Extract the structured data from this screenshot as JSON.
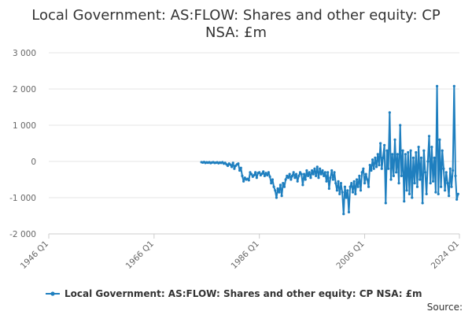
{
  "chart_data": {
    "type": "line",
    "title_lines": [
      "Local Government: AS:FLOW: Shares and other equity: CP",
      "NSA: £m"
    ],
    "source_label": "Source:",
    "y_ticks": [
      "3 000",
      "2 000",
      "1 000",
      "0",
      "-1 000",
      "-2 000"
    ],
    "y_tick_values": [
      3000,
      2000,
      1000,
      0,
      -1000,
      -2000
    ],
    "ylim": [
      -2000,
      3000
    ],
    "x_ticks": [
      "1946 Q1",
      "1966 Q1",
      "1986 Q1",
      "2006 Q1",
      "2024 Q1"
    ],
    "x_tick_values": [
      1946.0,
      1966.0,
      1986.0,
      2006.0,
      2024.0
    ],
    "xlim": [
      1946.0,
      2024.0
    ],
    "grid": "horizontal",
    "legend_position": "bottom",
    "colors": {
      "series": "#1f7fbf",
      "grid": "#e6e6e6",
      "axis": "#cccccc"
    },
    "series": [
      {
        "name": "Local Government: AS:FLOW: Shares and other equity: CP NSA: £m",
        "points": [
          [
            1975.0,
            -20
          ],
          [
            1975.25,
            -30
          ],
          [
            1975.5,
            -15
          ],
          [
            1975.75,
            -40
          ],
          [
            1976.0,
            -25
          ],
          [
            1976.25,
            -35
          ],
          [
            1976.5,
            -20
          ],
          [
            1976.75,
            -45
          ],
          [
            1977.0,
            -30
          ],
          [
            1977.25,
            -20
          ],
          [
            1977.5,
            -40
          ],
          [
            1977.75,
            -35
          ],
          [
            1978.0,
            -25
          ],
          [
            1978.25,
            -50
          ],
          [
            1978.5,
            -30
          ],
          [
            1978.75,
            -40
          ],
          [
            1979.0,
            -20
          ],
          [
            1979.25,
            -60
          ],
          [
            1979.5,
            -40
          ],
          [
            1979.75,
            -80
          ],
          [
            1980.0,
            -120
          ],
          [
            1980.25,
            -60
          ],
          [
            1980.5,
            -90
          ],
          [
            1980.75,
            -150
          ],
          [
            1981.0,
            -40
          ],
          [
            1981.25,
            -200
          ],
          [
            1981.5,
            -120
          ],
          [
            1981.75,
            -80
          ],
          [
            1982.0,
            -60
          ],
          [
            1982.25,
            -250
          ],
          [
            1982.5,
            -180
          ],
          [
            1982.75,
            -400
          ],
          [
            1983.0,
            -550
          ],
          [
            1983.25,
            -450
          ],
          [
            1983.5,
            -500
          ],
          [
            1983.75,
            -480
          ],
          [
            1984.0,
            -520
          ],
          [
            1984.25,
            -300
          ],
          [
            1984.5,
            -350
          ],
          [
            1984.75,
            -420
          ],
          [
            1985.0,
            -380
          ],
          [
            1985.25,
            -300
          ],
          [
            1985.5,
            -450
          ],
          [
            1985.75,
            -320
          ],
          [
            1986.0,
            -300
          ],
          [
            1986.25,
            -380
          ],
          [
            1986.5,
            -340
          ],
          [
            1986.75,
            -280
          ],
          [
            1987.0,
            -400
          ],
          [
            1987.25,
            -320
          ],
          [
            1987.5,
            -380
          ],
          [
            1987.75,
            -300
          ],
          [
            1988.0,
            -420
          ],
          [
            1988.25,
            -600
          ],
          [
            1988.5,
            -500
          ],
          [
            1988.75,
            -700
          ],
          [
            1989.0,
            -800
          ],
          [
            1989.25,
            -1000
          ],
          [
            1989.5,
            -750
          ],
          [
            1989.75,
            -850
          ],
          [
            1990.0,
            -650
          ],
          [
            1990.25,
            -950
          ],
          [
            1990.5,
            -600
          ],
          [
            1990.75,
            -700
          ],
          [
            1991.0,
            -500
          ],
          [
            1991.25,
            -400
          ],
          [
            1991.5,
            -450
          ],
          [
            1991.75,
            -350
          ],
          [
            1992.0,
            -500
          ],
          [
            1992.25,
            -400
          ],
          [
            1992.5,
            -300
          ],
          [
            1992.75,
            -450
          ],
          [
            1993.0,
            -350
          ],
          [
            1993.25,
            -550
          ],
          [
            1993.5,
            -400
          ],
          [
            1993.75,
            -300
          ],
          [
            1994.0,
            -350
          ],
          [
            1994.25,
            -650
          ],
          [
            1994.5,
            -350
          ],
          [
            1994.75,
            -500
          ],
          [
            1995.0,
            -250
          ],
          [
            1995.25,
            -400
          ],
          [
            1995.5,
            -300
          ],
          [
            1995.75,
            -450
          ],
          [
            1996.0,
            -250
          ],
          [
            1996.25,
            -350
          ],
          [
            1996.5,
            -200
          ],
          [
            1996.75,
            -400
          ],
          [
            1997.0,
            -150
          ],
          [
            1997.25,
            -450
          ],
          [
            1997.5,
            -200
          ],
          [
            1997.75,
            -350
          ],
          [
            1998.0,
            -250
          ],
          [
            1998.25,
            -400
          ],
          [
            1998.5,
            -300
          ],
          [
            1998.75,
            -550
          ],
          [
            1999.0,
            -300
          ],
          [
            1999.25,
            -750
          ],
          [
            1999.5,
            -450
          ],
          [
            1999.75,
            -250
          ],
          [
            2000.0,
            -500
          ],
          [
            2000.25,
            -300
          ],
          [
            2000.5,
            -600
          ],
          [
            2000.75,
            -800
          ],
          [
            2001.0,
            -550
          ],
          [
            2001.25,
            -900
          ],
          [
            2001.5,
            -600
          ],
          [
            2001.75,
            -850
          ],
          [
            2002.0,
            -1450
          ],
          [
            2002.25,
            -700
          ],
          [
            2002.5,
            -1000
          ],
          [
            2002.75,
            -800
          ],
          [
            2003.0,
            -1400
          ],
          [
            2003.25,
            -700
          ],
          [
            2003.5,
            -600
          ],
          [
            2003.75,
            -850
          ],
          [
            2004.0,
            -550
          ],
          [
            2004.25,
            -900
          ],
          [
            2004.5,
            -500
          ],
          [
            2004.75,
            -700
          ],
          [
            2005.0,
            -400
          ],
          [
            2005.25,
            -800
          ],
          [
            2005.5,
            -300
          ],
          [
            2005.75,
            -200
          ],
          [
            2006.0,
            -600
          ],
          [
            2006.25,
            -350
          ],
          [
            2006.5,
            -500
          ],
          [
            2006.75,
            -700
          ],
          [
            2007.0,
            -100
          ],
          [
            2007.25,
            -250
          ],
          [
            2007.5,
            50
          ],
          [
            2007.75,
            -200
          ],
          [
            2008.0,
            100
          ],
          [
            2008.25,
            -150
          ],
          [
            2008.5,
            200
          ],
          [
            2008.75,
            -100
          ],
          [
            2009.0,
            500
          ],
          [
            2009.25,
            -200
          ],
          [
            2009.5,
            100
          ],
          [
            2009.75,
            450
          ],
          [
            2010.0,
            -1150
          ],
          [
            2010.25,
            300
          ],
          [
            2010.5,
            -200
          ],
          [
            2010.75,
            1350
          ],
          [
            2011.0,
            -500
          ],
          [
            2011.25,
            200
          ],
          [
            2011.5,
            -400
          ],
          [
            2011.75,
            600
          ],
          [
            2012.0,
            -300
          ],
          [
            2012.25,
            200
          ],
          [
            2012.5,
            -600
          ],
          [
            2012.75,
            1000
          ],
          [
            2013.0,
            -400
          ],
          [
            2013.25,
            300
          ],
          [
            2013.5,
            -1100
          ],
          [
            2013.75,
            200
          ],
          [
            2014.0,
            -800
          ],
          [
            2014.25,
            250
          ],
          [
            2014.5,
            -900
          ],
          [
            2014.75,
            300
          ],
          [
            2015.0,
            -1000
          ],
          [
            2015.25,
            100
          ],
          [
            2015.5,
            -600
          ],
          [
            2015.75,
            250
          ],
          [
            2016.0,
            -700
          ],
          [
            2016.25,
            400
          ],
          [
            2016.5,
            -500
          ],
          [
            2016.75,
            100
          ],
          [
            2017.0,
            -1150
          ],
          [
            2017.25,
            300
          ],
          [
            2017.5,
            -300
          ],
          [
            2017.75,
            -900
          ],
          [
            2018.0,
            0
          ],
          [
            2018.25,
            700
          ],
          [
            2018.5,
            -600
          ],
          [
            2018.75,
            400
          ],
          [
            2019.0,
            -550
          ],
          [
            2019.25,
            100
          ],
          [
            2019.5,
            -850
          ],
          [
            2019.75,
            2080
          ],
          [
            2020.0,
            -900
          ],
          [
            2020.25,
            600
          ],
          [
            2020.5,
            -700
          ],
          [
            2020.75,
            300
          ],
          [
            2021.0,
            -200
          ],
          [
            2021.25,
            -800
          ],
          [
            2021.5,
            -300
          ],
          [
            2021.75,
            -600
          ],
          [
            2022.0,
            -950
          ],
          [
            2022.25,
            -200
          ],
          [
            2022.5,
            -700
          ],
          [
            2022.75,
            -250
          ],
          [
            2023.0,
            2080
          ],
          [
            2023.25,
            -400
          ],
          [
            2023.5,
            -1050
          ],
          [
            2023.75,
            -900
          ]
        ]
      }
    ]
  }
}
